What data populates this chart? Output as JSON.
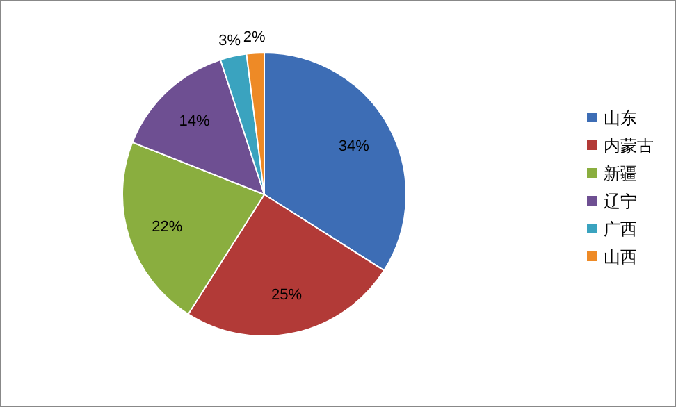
{
  "chart_data": {
    "type": "pie",
    "categories": [
      "山东",
      "内蒙古",
      "新疆",
      "辽宁",
      "广西",
      "山西"
    ],
    "values": [
      34,
      25,
      22,
      14,
      3,
      2
    ],
    "value_labels": [
      "34%",
      "25%",
      "22%",
      "14%",
      "3%",
      "2%"
    ],
    "colors": [
      "#3d6db5",
      "#b23a37",
      "#8aae3f",
      "#6e4f92",
      "#3aa3bf",
      "#ee8a26"
    ],
    "legend": "right"
  }
}
